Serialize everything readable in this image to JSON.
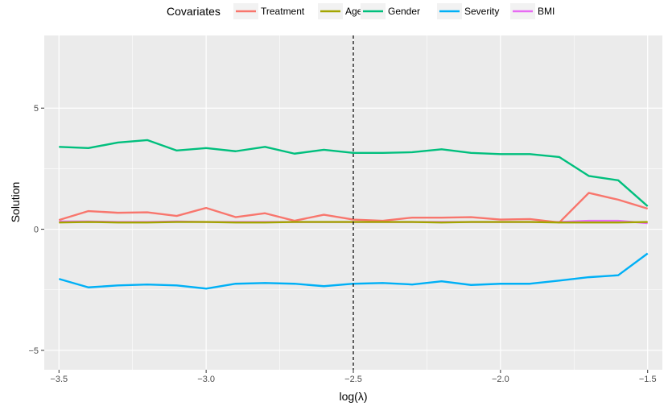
{
  "chart_data": {
    "type": "line",
    "xlabel": "log(λ)",
    "ylabel": "Solution",
    "xlim": [
      -3.55,
      -1.45
    ],
    "ylim": [
      -5.8,
      8.0
    ],
    "x_ticks": [
      -3.5,
      -3.0,
      -2.5,
      -2.0,
      -1.5
    ],
    "x_tick_labels": [
      "−3.5",
      "−3.0",
      "−2.5",
      "−2.0",
      "−1.5"
    ],
    "y_ticks": [
      -5,
      0,
      5
    ],
    "y_tick_labels": [
      "−5",
      "0",
      "5"
    ],
    "grid": true,
    "vline": {
      "x": -2.5,
      "style": "dashed",
      "color": "#000000"
    },
    "legend": {
      "title": "Covariates",
      "placement": "top"
    },
    "x": [
      -3.5,
      -3.4,
      -3.3,
      -3.2,
      -3.1,
      -3.0,
      -2.9,
      -2.8,
      -2.7,
      -2.6,
      -2.5,
      -2.4,
      -2.3,
      -2.2,
      -2.1,
      -2.0,
      -1.9,
      -1.8,
      -1.7,
      -1.6,
      -1.5
    ],
    "series": [
      {
        "name": "Treatment",
        "color": "#F8766D",
        "values": [
          0.38,
          0.75,
          0.68,
          0.7,
          0.55,
          0.88,
          0.5,
          0.66,
          0.35,
          0.6,
          0.4,
          0.35,
          0.48,
          0.48,
          0.5,
          0.4,
          0.42,
          0.28,
          1.5,
          1.22,
          0.85
        ]
      },
      {
        "name": "Age",
        "color": "#A3A500",
        "values": [
          0.28,
          0.3,
          0.28,
          0.28,
          0.3,
          0.3,
          0.28,
          0.28,
          0.3,
          0.3,
          0.3,
          0.3,
          0.3,
          0.28,
          0.3,
          0.3,
          0.3,
          0.28,
          0.28,
          0.28,
          0.3
        ]
      },
      {
        "name": "Gender",
        "color": "#00BF7D",
        "values": [
          3.4,
          3.35,
          3.58,
          3.68,
          3.25,
          3.35,
          3.22,
          3.4,
          3.12,
          3.28,
          3.15,
          3.15,
          3.18,
          3.3,
          3.15,
          3.1,
          3.1,
          2.98,
          2.2,
          2.02,
          0.95
        ]
      },
      {
        "name": "Severity",
        "color": "#00B0F6",
        "values": [
          -2.05,
          -2.4,
          -2.32,
          -2.28,
          -2.32,
          -2.45,
          -2.25,
          -2.22,
          -2.25,
          -2.35,
          -2.25,
          -2.22,
          -2.28,
          -2.15,
          -2.3,
          -2.25,
          -2.25,
          -2.12,
          -1.98,
          -1.9,
          -1.0
        ]
      },
      {
        "name": "BMI",
        "color": "#E76BF3",
        "values": [
          0.32,
          0.32,
          0.3,
          0.3,
          0.32,
          0.3,
          0.3,
          0.3,
          0.3,
          0.3,
          0.3,
          0.3,
          0.3,
          0.3,
          0.3,
          0.3,
          0.3,
          0.3,
          0.35,
          0.35,
          0.25
        ]
      }
    ]
  }
}
